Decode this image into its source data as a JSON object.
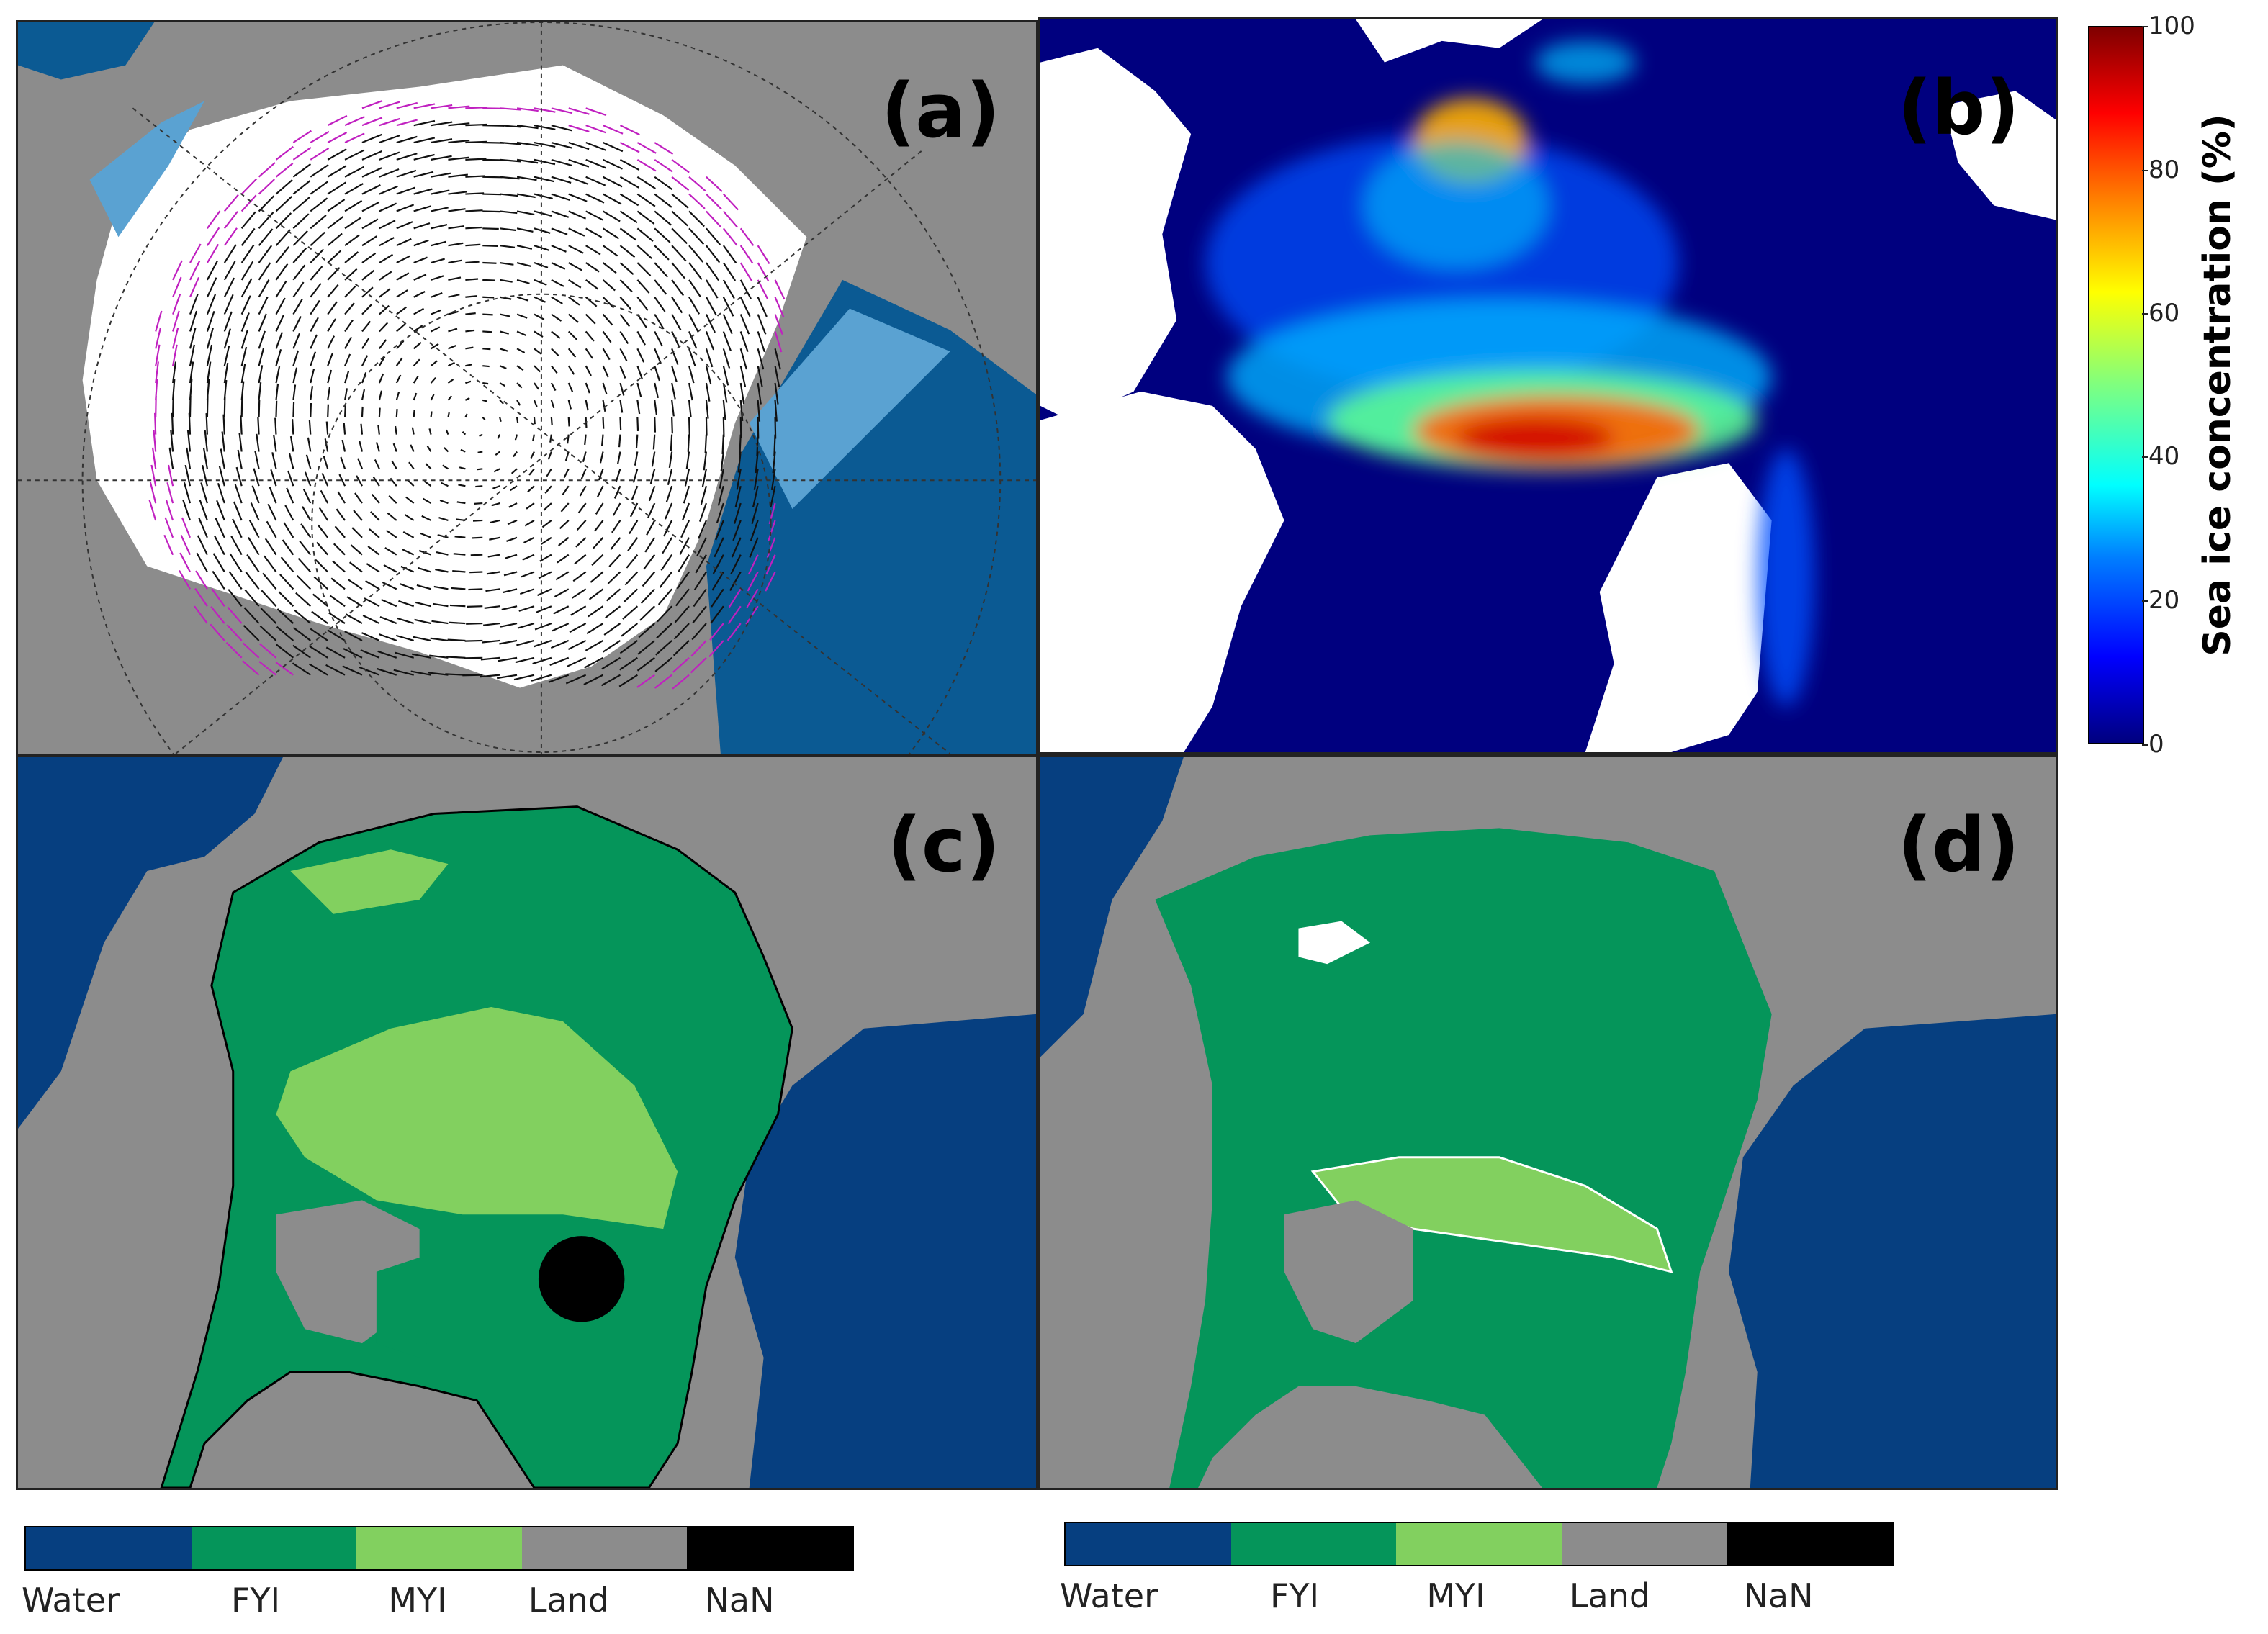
{
  "panels": {
    "a": {
      "label": "(a)"
    },
    "b": {
      "label": "(b)"
    },
    "c": {
      "label": "(c)"
    },
    "d": {
      "label": "(d)"
    }
  },
  "colorbar": {
    "label": "Sea ice concentration (%)",
    "ticks": [
      "0",
      "20",
      "40",
      "60",
      "80",
      "100"
    ],
    "range": [
      0,
      100
    ],
    "colormap": "jet"
  },
  "legend": {
    "classes": [
      {
        "label": "Water",
        "color": "#063f80"
      },
      {
        "label": "FYI",
        "color": "#05955a"
      },
      {
        "label": "MYI",
        "color": "#82d05f"
      },
      {
        "label": "Land",
        "color": "#8c8c8c"
      },
      {
        "label": "NaN",
        "color": "#000000"
      }
    ]
  },
  "colors": {
    "ocean": "#0b5a93",
    "land": "#8c8c8c",
    "ice": "#ffffff",
    "ice_edge": "#5aa2d2",
    "vector": "#111111",
    "vector_highlight": "#c020c0",
    "grid_line": "#333333"
  }
}
